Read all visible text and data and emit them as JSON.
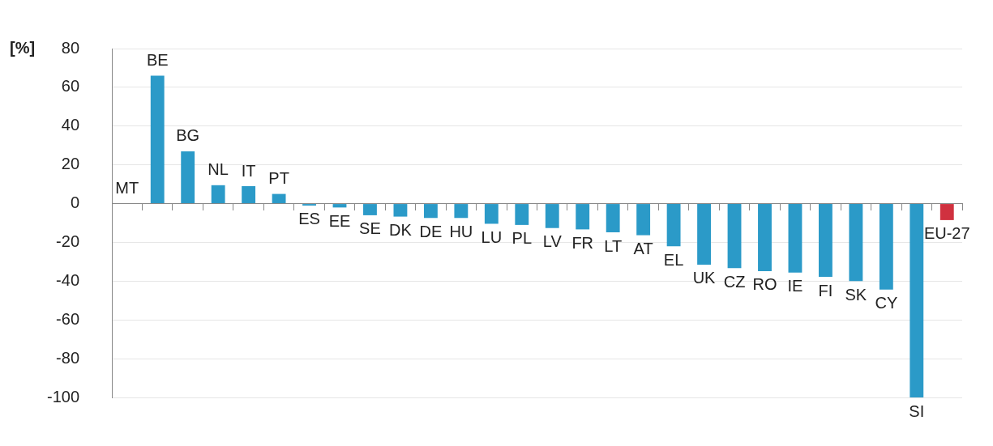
{
  "chart_data": {
    "type": "bar",
    "ylabel": "[%]",
    "categories": [
      "MT",
      "BE",
      "BG",
      "NL",
      "IT",
      "PT",
      "ES",
      "EE",
      "SE",
      "DK",
      "DE",
      "HU",
      "LU",
      "PL",
      "LV",
      "FR",
      "LT",
      "AT",
      "EL",
      "UK",
      "CZ",
      "RO",
      "IE",
      "FI",
      "SK",
      "CY",
      "SI",
      "EU-27"
    ],
    "values": [
      0,
      66,
      27,
      9.5,
      9,
      5,
      -1,
      -2,
      -6,
      -6.7,
      -7.4,
      -7.4,
      -10.4,
      -11,
      -12.6,
      -13.3,
      -14.8,
      -16.3,
      -22,
      -31.5,
      -33.3,
      -34.8,
      -35.6,
      -37.8,
      -40,
      -44.4,
      -100,
      -8.5
    ],
    "colors": [
      "#2b9ac8",
      "#2b9ac8",
      "#2b9ac8",
      "#2b9ac8",
      "#2b9ac8",
      "#2b9ac8",
      "#2b9ac8",
      "#2b9ac8",
      "#2b9ac8",
      "#2b9ac8",
      "#2b9ac8",
      "#2b9ac8",
      "#2b9ac8",
      "#2b9ac8",
      "#2b9ac8",
      "#2b9ac8",
      "#2b9ac8",
      "#2b9ac8",
      "#2b9ac8",
      "#2b9ac8",
      "#2b9ac8",
      "#2b9ac8",
      "#2b9ac8",
      "#2b9ac8",
      "#2b9ac8",
      "#2b9ac8",
      "#2b9ac8",
      "#d0313f"
    ],
    "ylim": [
      -100,
      80
    ],
    "yticks": [
      -100,
      -80,
      -60,
      -40,
      -20,
      0,
      20,
      40,
      60,
      80
    ],
    "grid": "y",
    "legend": false
  }
}
